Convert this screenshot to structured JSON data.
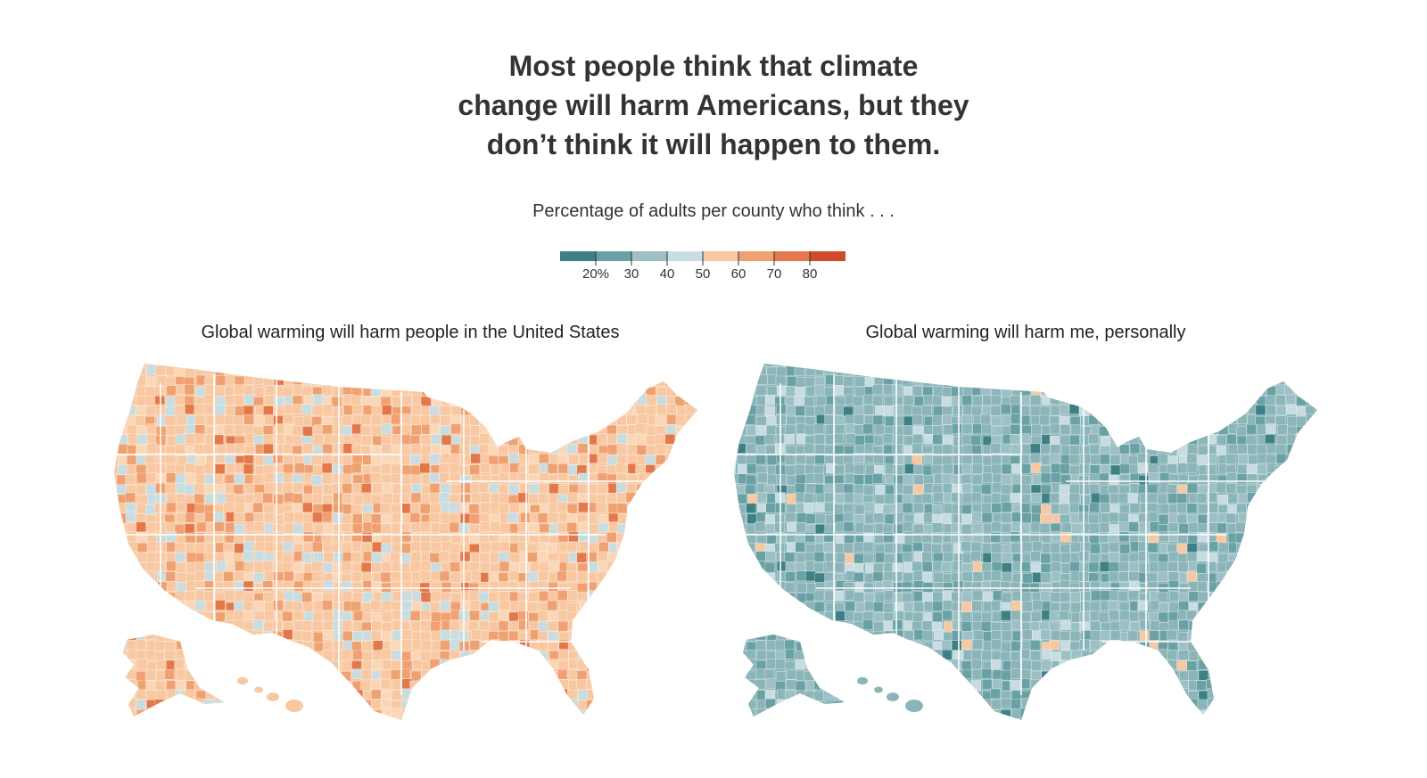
{
  "headline": {
    "line1": "Most people think that climate",
    "line2": "change will harm Americans, but they",
    "line3": "don’t think it will happen to them."
  },
  "subhead": "Percentage of adults per county who think . . .",
  "legend": {
    "colors": [
      "#3d8085",
      "#6aa1a5",
      "#9cc0c5",
      "#c8dde1",
      "#f8c8a2",
      "#f0a172",
      "#e3794b",
      "#cf4a2a"
    ],
    "ticks": [
      "20%",
      "30",
      "40",
      "50",
      "60",
      "70",
      "80"
    ]
  },
  "chart_data": [
    {
      "type": "choropleth",
      "title": "Global warming will harm people in the United States",
      "dominant_band": "50–60",
      "dominant_color": "#f8c8a2"
    },
    {
      "type": "choropleth",
      "title": "Global warming will harm me, personally",
      "dominant_band": "30–40",
      "dominant_color": "#8bb5b9"
    }
  ]
}
